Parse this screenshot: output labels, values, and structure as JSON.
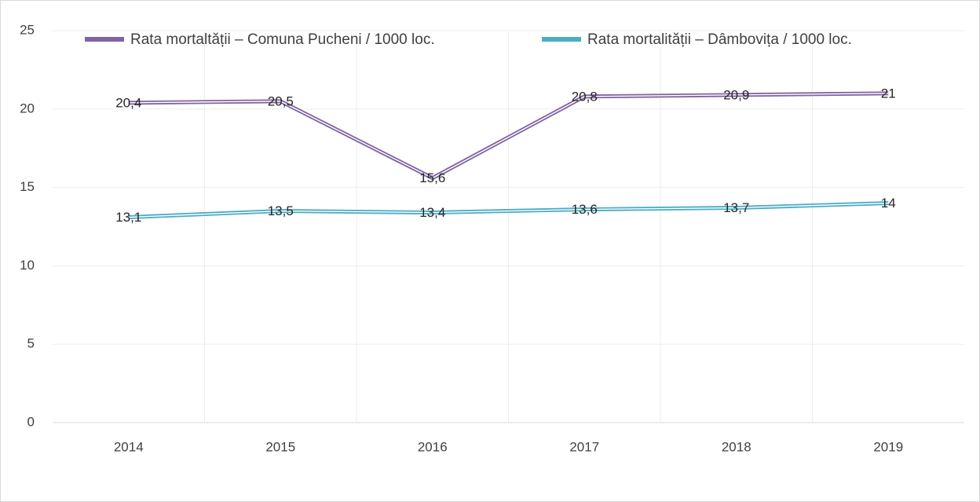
{
  "chart_data": {
    "type": "line",
    "categories": [
      "2014",
      "2015",
      "2016",
      "2017",
      "2018",
      "2019"
    ],
    "series": [
      {
        "name": "Rata mortaltății – Comuna Pucheni / 1000 loc.",
        "color": "#8064a2",
        "values": [
          20.4,
          20.5,
          15.6,
          20.8,
          20.9,
          21
        ],
        "value_labels": [
          "20,4",
          "20,5",
          "15,6",
          "20,8",
          "20,9",
          "21"
        ]
      },
      {
        "name": "Rata mortalității – Dâmbovița / 1000 loc.",
        "color": "#4bacc6",
        "values": [
          13.1,
          13.5,
          13.4,
          13.6,
          13.7,
          14
        ],
        "value_labels": [
          "13,1",
          "13,5",
          "13,4",
          "13,6",
          "13,7",
          "14"
        ]
      }
    ],
    "ylim": [
      0,
      25
    ],
    "yticks": [
      0,
      5,
      10,
      15,
      20,
      25
    ],
    "grid": true,
    "legend": "top"
  }
}
